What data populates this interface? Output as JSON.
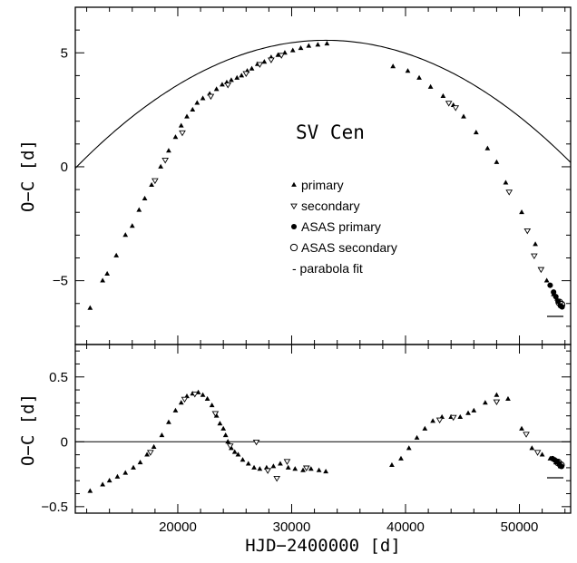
{
  "chart_data": [
    {
      "type": "scatter",
      "title": "SV Cen",
      "xlabel": "",
      "ylabel": "O−C [d]",
      "xlim": [
        11000,
        54500
      ],
      "ylim": [
        -7.8,
        7.0
      ],
      "xticks": [
        20000,
        30000,
        40000,
        50000
      ],
      "yticks": [
        -5,
        0,
        5
      ],
      "legend_position": "center-right",
      "legend": [
        {
          "marker": "triangle-up",
          "label": "primary"
        },
        {
          "marker": "triangle-down-open",
          "label": "secondary"
        },
        {
          "marker": "circle-filled",
          "label": "ASAS primary"
        },
        {
          "marker": "circle-open",
          "label": "ASAS secondary"
        },
        {
          "marker": "dash",
          "label": "- parabola fit"
        }
      ],
      "fit": {
        "type": "parabola",
        "vertex_x": 33000,
        "vertex_y": 5.55,
        "curvature": 1.16e-08
      },
      "series": [
        {
          "name": "primary",
          "marker": "triangle-up",
          "points": [
            [
              12300,
              -6.2
            ],
            [
              13400,
              -5.0
            ],
            [
              13800,
              -4.7
            ],
            [
              14600,
              -3.9
            ],
            [
              15400,
              -3.0
            ],
            [
              16000,
              -2.6
            ],
            [
              16600,
              -1.9
            ],
            [
              17100,
              -1.4
            ],
            [
              17700,
              -0.8
            ],
            [
              18500,
              0.0
            ],
            [
              19200,
              0.7
            ],
            [
              19800,
              1.3
            ],
            [
              20300,
              1.8
            ],
            [
              20800,
              2.2
            ],
            [
              21300,
              2.5
            ],
            [
              21700,
              2.8
            ],
            [
              22200,
              3.0
            ],
            [
              22800,
              3.2
            ],
            [
              23400,
              3.4
            ],
            [
              23900,
              3.6
            ],
            [
              24300,
              3.7
            ],
            [
              24700,
              3.8
            ],
            [
              25200,
              3.9
            ],
            [
              25600,
              4.0
            ],
            [
              26100,
              4.2
            ],
            [
              26500,
              4.3
            ],
            [
              27000,
              4.5
            ],
            [
              27600,
              4.6
            ],
            [
              28200,
              4.8
            ],
            [
              28800,
              4.9
            ],
            [
              29400,
              5.0
            ],
            [
              30100,
              5.1
            ],
            [
              30800,
              5.2
            ],
            [
              31500,
              5.3
            ],
            [
              32300,
              5.35
            ],
            [
              33100,
              5.4
            ],
            [
              38900,
              4.4
            ],
            [
              40200,
              4.2
            ],
            [
              41200,
              3.9
            ],
            [
              42200,
              3.5
            ],
            [
              43300,
              3.1
            ],
            [
              44200,
              2.7
            ],
            [
              45100,
              2.2
            ],
            [
              46200,
              1.5
            ],
            [
              47200,
              0.8
            ],
            [
              48000,
              0.2
            ],
            [
              48800,
              -0.7
            ],
            [
              50200,
              -2.0
            ],
            [
              51400,
              -3.4
            ],
            [
              52400,
              -5.0
            ],
            [
              53000,
              -5.6
            ],
            [
              53300,
              -5.8
            ]
          ]
        },
        {
          "name": "secondary",
          "marker": "triangle-down-open",
          "points": [
            [
              18000,
              -0.6
            ],
            [
              18900,
              0.3
            ],
            [
              20400,
              1.5
            ],
            [
              22900,
              3.1
            ],
            [
              24400,
              3.6
            ],
            [
              26000,
              4.1
            ],
            [
              27200,
              4.5
            ],
            [
              28200,
              4.7
            ],
            [
              29100,
              4.9
            ],
            [
              43800,
              2.8
            ],
            [
              44400,
              2.6
            ],
            [
              49100,
              -1.1
            ],
            [
              50700,
              -2.8
            ],
            [
              51300,
              -3.9
            ],
            [
              51900,
              -4.5
            ]
          ]
        },
        {
          "name": "ASAS primary",
          "marker": "circle-filled",
          "points": [
            [
              52700,
              -5.2
            ],
            [
              53000,
              -5.5
            ],
            [
              53200,
              -5.7
            ],
            [
              53400,
              -5.9
            ],
            [
              53600,
              -6.1
            ],
            [
              53750,
              -6.15
            ]
          ]
        },
        {
          "name": "ASAS secondary",
          "marker": "circle-open",
          "points": [
            [
              53500,
              -5.95
            ],
            [
              53700,
              -6.05
            ]
          ]
        }
      ]
    },
    {
      "type": "scatter",
      "title": "",
      "xlabel": "HJD−2400000 [d]",
      "ylabel": "O−C [d]",
      "xlim": [
        11000,
        54500
      ],
      "ylim": [
        -0.55,
        0.75
      ],
      "xticks": [
        20000,
        30000,
        40000,
        50000
      ],
      "yticks": [
        -0.5,
        0,
        0.5
      ],
      "series": [
        {
          "name": "primary",
          "marker": "triangle-up",
          "points": [
            [
              12300,
              -0.38
            ],
            [
              13400,
              -0.33
            ],
            [
              14000,
              -0.3
            ],
            [
              14700,
              -0.27
            ],
            [
              15400,
              -0.24
            ],
            [
              16100,
              -0.2
            ],
            [
              16700,
              -0.16
            ],
            [
              17300,
              -0.1
            ],
            [
              17900,
              -0.04
            ],
            [
              18600,
              0.05
            ],
            [
              19200,
              0.15
            ],
            [
              19800,
              0.24
            ],
            [
              20300,
              0.3
            ],
            [
              20800,
              0.35
            ],
            [
              21300,
              0.37
            ],
            [
              21800,
              0.38
            ],
            [
              22200,
              0.36
            ],
            [
              22600,
              0.33
            ],
            [
              23000,
              0.28
            ],
            [
              23400,
              0.2
            ],
            [
              23700,
              0.14
            ],
            [
              24000,
              0.1
            ],
            [
              24200,
              0.05
            ],
            [
              24400,
              0.0
            ],
            [
              24700,
              -0.05
            ],
            [
              25000,
              -0.08
            ],
            [
              25300,
              -0.1
            ],
            [
              25700,
              -0.14
            ],
            [
              26200,
              -0.17
            ],
            [
              26700,
              -0.2
            ],
            [
              27200,
              -0.21
            ],
            [
              27800,
              -0.2
            ],
            [
              28400,
              -0.19
            ],
            [
              29000,
              -0.17
            ],
            [
              29700,
              -0.2
            ],
            [
              30300,
              -0.21
            ],
            [
              31000,
              -0.22
            ],
            [
              31700,
              -0.21
            ],
            [
              32400,
              -0.22
            ],
            [
              33000,
              -0.23
            ],
            [
              38800,
              -0.18
            ],
            [
              39600,
              -0.13
            ],
            [
              40300,
              -0.05
            ],
            [
              41000,
              0.03
            ],
            [
              41700,
              0.1
            ],
            [
              42400,
              0.16
            ],
            [
              43200,
              0.19
            ],
            [
              44000,
              0.19
            ],
            [
              44800,
              0.19
            ],
            [
              45500,
              0.22
            ],
            [
              46000,
              0.24
            ],
            [
              47000,
              0.3
            ],
            [
              48000,
              0.36
            ],
            [
              49000,
              0.33
            ],
            [
              50200,
              0.1
            ],
            [
              51100,
              -0.05
            ],
            [
              52000,
              -0.1
            ],
            [
              52700,
              -0.13
            ],
            [
              53200,
              -0.16
            ],
            [
              53600,
              -0.19
            ]
          ]
        },
        {
          "name": "secondary",
          "marker": "triangle-down-open",
          "points": [
            [
              17600,
              -0.08
            ],
            [
              20600,
              0.33
            ],
            [
              21500,
              0.37
            ],
            [
              23300,
              0.22
            ],
            [
              24600,
              -0.03
            ],
            [
              26900,
              0.0
            ],
            [
              27900,
              -0.22
            ],
            [
              28700,
              -0.28
            ],
            [
              29600,
              -0.15
            ],
            [
              31300,
              -0.2
            ],
            [
              43000,
              0.17
            ],
            [
              44200,
              0.19
            ],
            [
              48000,
              0.31
            ],
            [
              50600,
              0.06
            ],
            [
              51600,
              -0.08
            ]
          ]
        },
        {
          "name": "ASAS primary",
          "marker": "circle-filled",
          "points": [
            [
              52900,
              -0.13
            ],
            [
              53100,
              -0.14
            ],
            [
              53300,
              -0.15
            ],
            [
              53500,
              -0.17
            ],
            [
              53700,
              -0.19
            ]
          ]
        },
        {
          "name": "ASAS secondary",
          "marker": "circle-open",
          "points": [
            [
              53400,
              -0.16
            ],
            [
              53650,
              -0.18
            ]
          ]
        }
      ]
    }
  ]
}
